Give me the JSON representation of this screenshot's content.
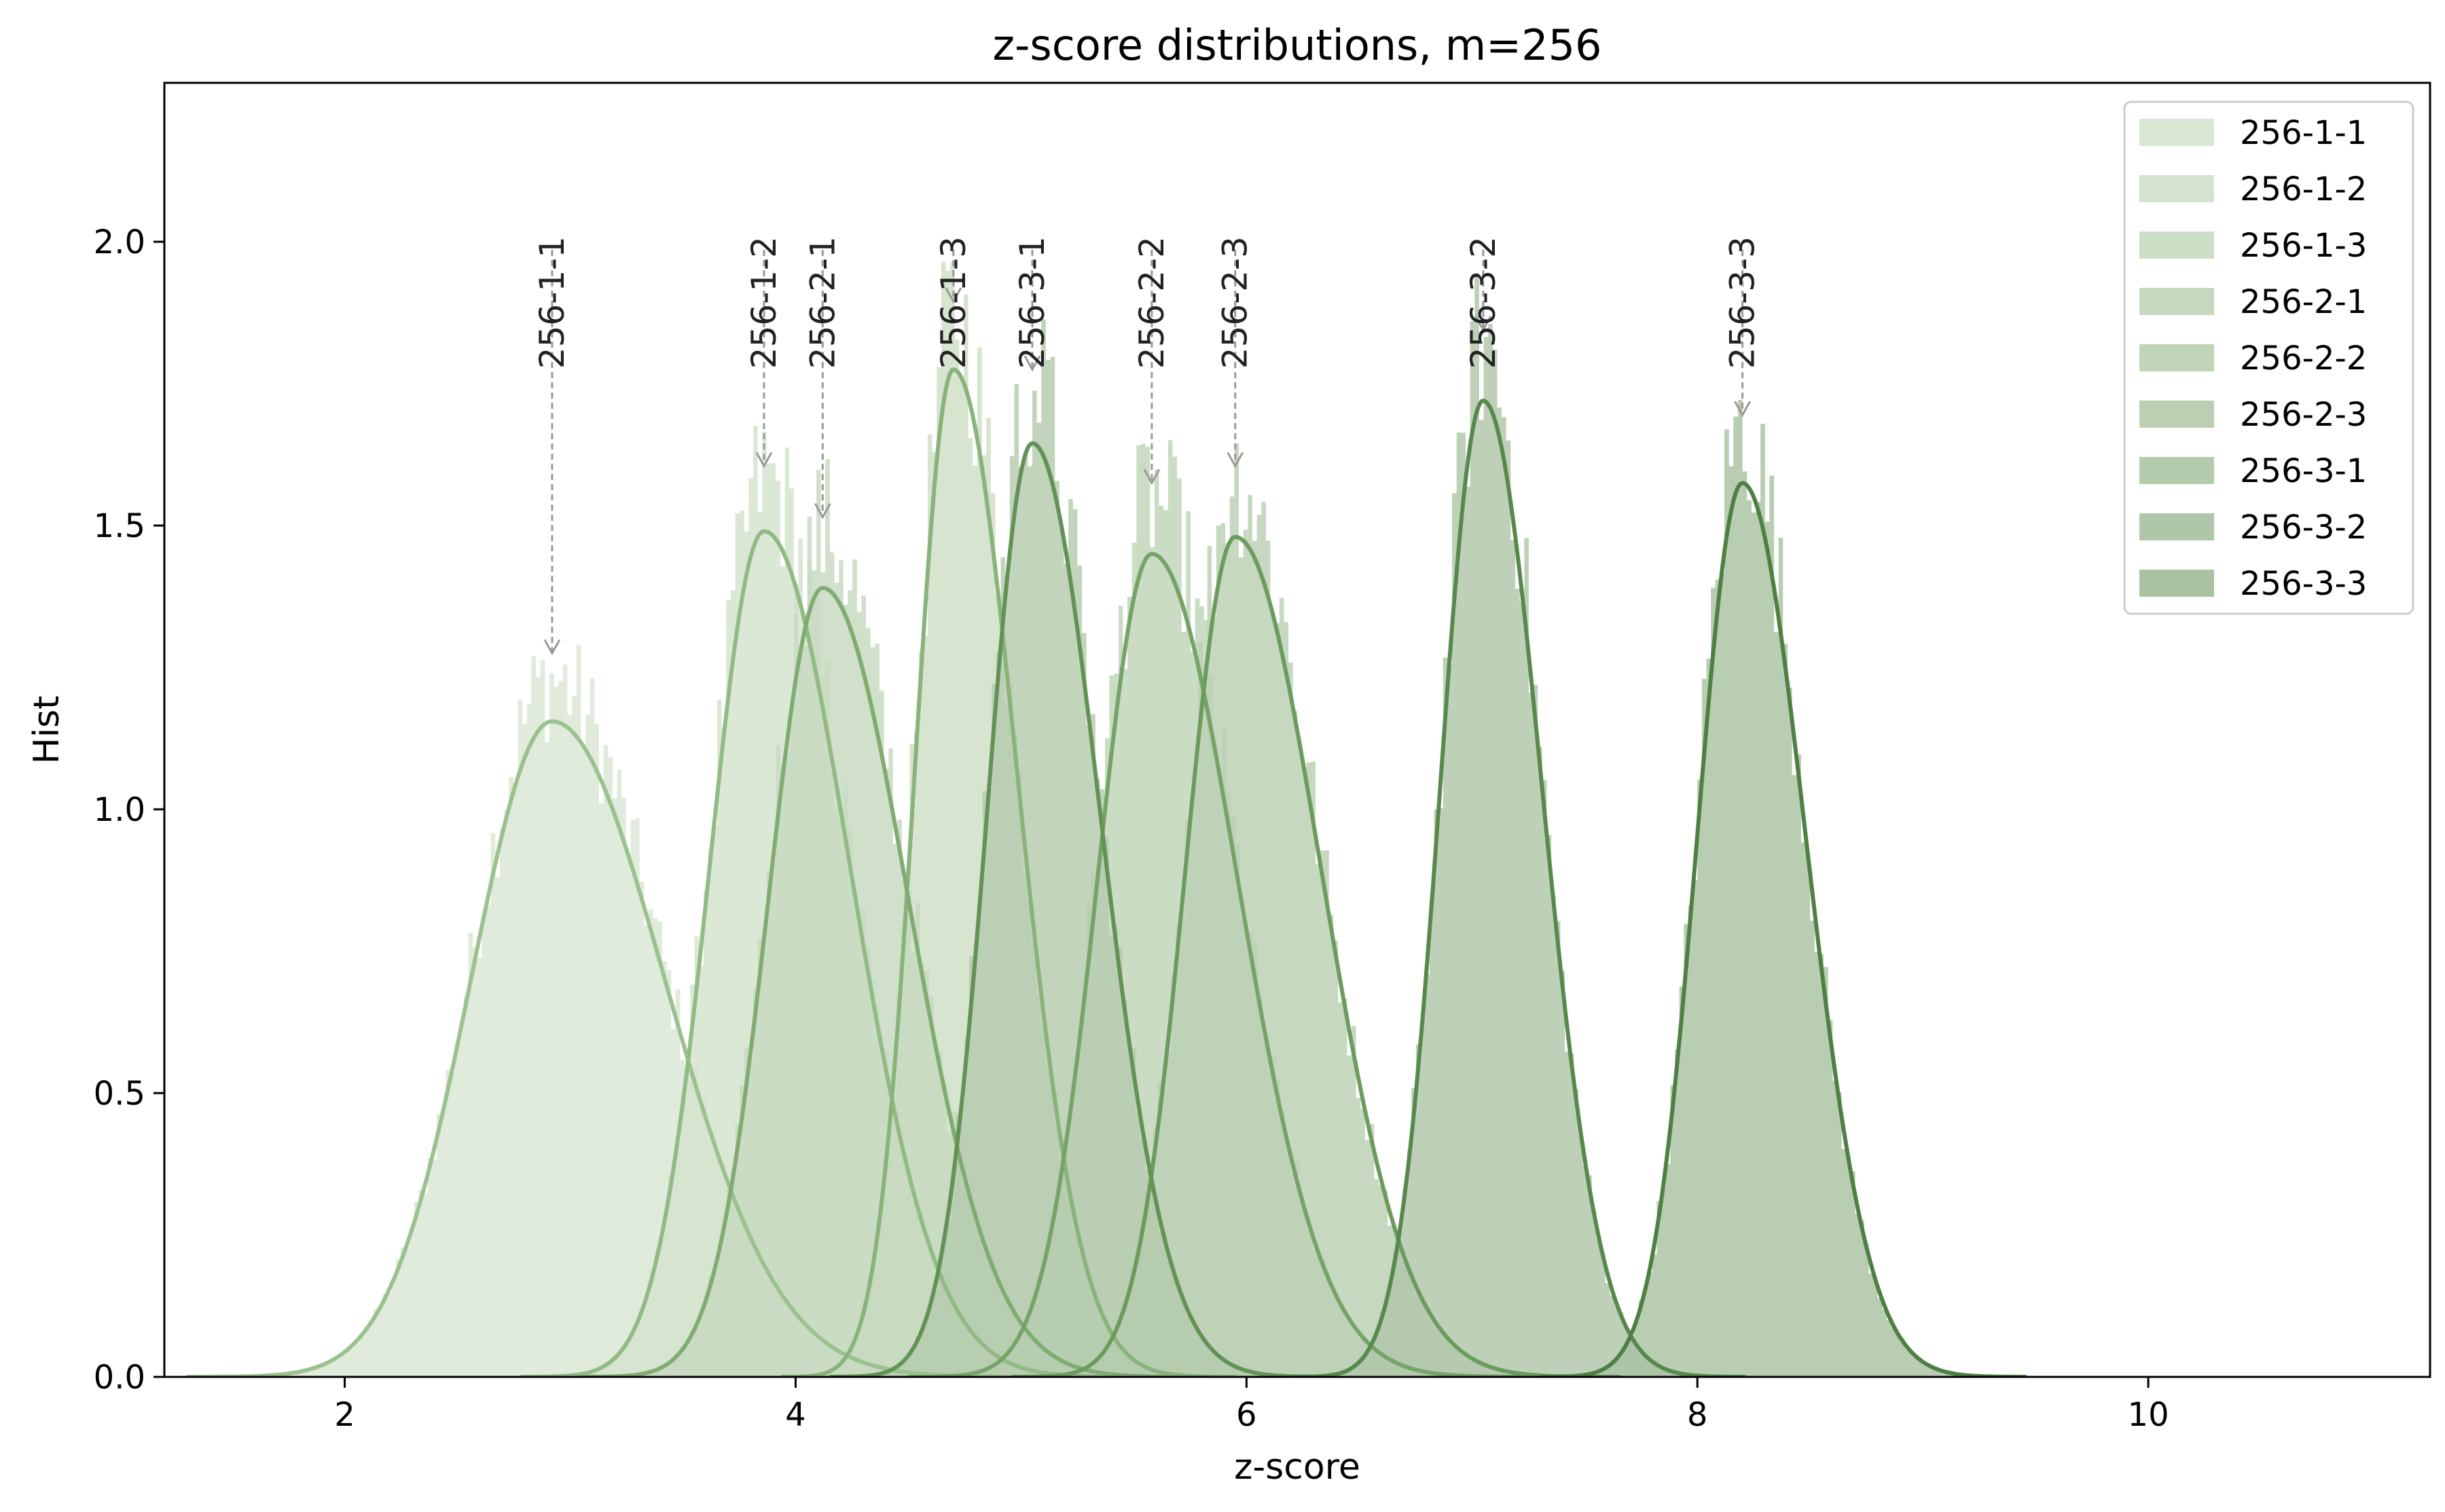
{
  "chart_data": {
    "type": "histogram",
    "title": "z-score distributions, m=256",
    "xlabel": "z-score",
    "ylabel": "Hist",
    "xlim": [
      1.2,
      11.25
    ],
    "ylim": [
      0,
      2.28
    ],
    "xticks": [
      2,
      4,
      6,
      8,
      10
    ],
    "yticks": [
      0.0,
      0.5,
      1.0,
      1.5,
      2.0
    ],
    "xtick_labels": [
      "2",
      "4",
      "6",
      "8",
      "10"
    ],
    "ytick_labels": [
      "0.0",
      "0.5",
      "1.0",
      "1.5",
      "2.0"
    ],
    "grid": false,
    "legend_position": "top-right",
    "annotation_label_y": 2.0,
    "series": [
      {
        "name": "256-1-1",
        "mean": 2.92,
        "sigma_left": 0.36,
        "sigma_right": 0.5,
        "peak": 1.155,
        "hist_peak": 1.24,
        "annot_x": 2.92,
        "annot_y": 1.27,
        "fill": "#d9e6d3",
        "line": "#9bc18f"
      },
      {
        "name": "256-1-2",
        "mean": 3.86,
        "sigma_left": 0.24,
        "sigma_right": 0.38,
        "peak": 1.49,
        "hist_peak": 1.6,
        "annot_x": 3.86,
        "annot_y": 1.6,
        "fill": "#d4e3cd",
        "line": "#92ba85"
      },
      {
        "name": "256-1-3",
        "mean": 4.7,
        "sigma_left": 0.17,
        "sigma_right": 0.28,
        "peak": 1.775,
        "hist_peak": 1.89,
        "annot_x": 4.7,
        "annot_y": 1.89,
        "fill": "#cddec6",
        "line": "#89b37b"
      },
      {
        "name": "256-2-1",
        "mean": 4.12,
        "sigma_left": 0.24,
        "sigma_right": 0.38,
        "peak": 1.39,
        "hist_peak": 1.51,
        "annot_x": 4.12,
        "annot_y": 1.51,
        "fill": "#c6d9bf",
        "line": "#80ac72"
      },
      {
        "name": "256-2-2",
        "mean": 5.58,
        "sigma_left": 0.24,
        "sigma_right": 0.38,
        "peak": 1.45,
        "hist_peak": 1.57,
        "annot_x": 5.58,
        "annot_y": 1.57,
        "fill": "#c0d4b8",
        "line": "#76a368"
      },
      {
        "name": "256-2-3",
        "mean": 5.95,
        "sigma_left": 0.22,
        "sigma_right": 0.38,
        "peak": 1.48,
        "hist_peak": 1.6,
        "annot_x": 5.95,
        "annot_y": 1.6,
        "fill": "#bbd0b3",
        "line": "#6c9b5e"
      },
      {
        "name": "256-3-1",
        "mean": 5.05,
        "sigma_left": 0.2,
        "sigma_right": 0.3,
        "peak": 1.645,
        "hist_peak": 1.77,
        "annot_x": 5.05,
        "annot_y": 1.77,
        "fill": "#b5cbad",
        "line": "#629255"
      },
      {
        "name": "256-3-2",
        "mean": 7.05,
        "sigma_left": 0.19,
        "sigma_right": 0.26,
        "peak": 1.72,
        "hist_peak": 1.84,
        "annot_x": 7.05,
        "annot_y": 1.84,
        "fill": "#b0c6a8",
        "line": "#58894c"
      },
      {
        "name": "256-3-3",
        "mean": 8.2,
        "sigma_left": 0.2,
        "sigma_right": 0.28,
        "peak": 1.575,
        "hist_peak": 1.69,
        "annot_x": 8.2,
        "annot_y": 1.69,
        "fill": "#aac2a2",
        "line": "#4e8043"
      }
    ]
  }
}
